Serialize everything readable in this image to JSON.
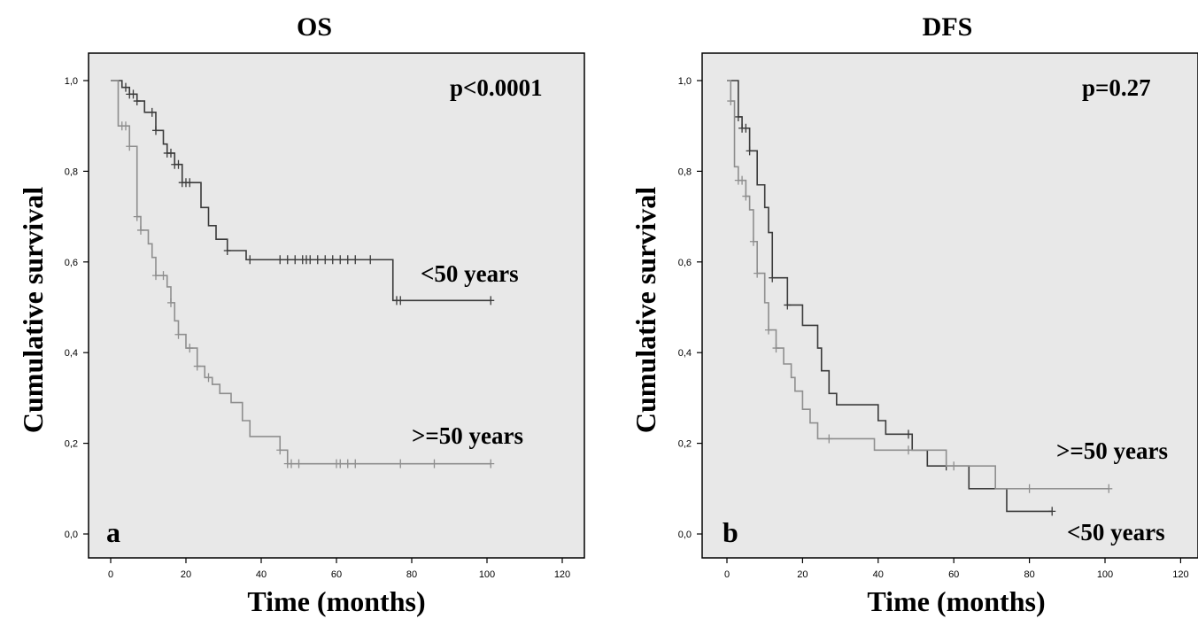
{
  "chart_data": [
    {
      "type": "line",
      "title": "OS",
      "xlabel": "Time (months)",
      "ylabel": "Cumulative survival",
      "xlim": [
        0,
        120
      ],
      "ylim": [
        0,
        1
      ],
      "x_ticks": [
        "0",
        "20",
        "40",
        "60",
        "80",
        "100",
        "120"
      ],
      "y_ticks": [
        "0,0",
        "0,2",
        "0,4",
        "0,6",
        "0,8",
        "1,0"
      ],
      "grid": false,
      "background": "#e8e8e8",
      "panel_label": "a",
      "p_value": "p<0.0001",
      "series": [
        {
          "name": "<50 years",
          "color": "#3a3a3a",
          "steps": [
            [
              0,
              1.0
            ],
            [
              3,
              0.985
            ],
            [
              5,
              0.97
            ],
            [
              7,
              0.955
            ],
            [
              9,
              0.93
            ],
            [
              12,
              0.89
            ],
            [
              14,
              0.86
            ],
            [
              15,
              0.84
            ],
            [
              17,
              0.815
            ],
            [
              19,
              0.775
            ],
            [
              24,
              0.72
            ],
            [
              26,
              0.68
            ],
            [
              28,
              0.65
            ],
            [
              31,
              0.625
            ],
            [
              36,
              0.605
            ],
            [
              75,
              0.515
            ],
            [
              101,
              0.515
            ]
          ],
          "censored": [
            4,
            5,
            6,
            7,
            11,
            12,
            15,
            16,
            17,
            18,
            19,
            20,
            21,
            31,
            37,
            45,
            47,
            49,
            51,
            52,
            53,
            55,
            57,
            59,
            61,
            63,
            65,
            69,
            76,
            77,
            101
          ]
        },
        {
          "name": ">=50 years",
          "color": "#8e8e8e",
          "steps": [
            [
              0,
              1.0
            ],
            [
              2,
              0.9
            ],
            [
              5,
              0.855
            ],
            [
              7,
              0.7
            ],
            [
              8,
              0.67
            ],
            [
              10,
              0.64
            ],
            [
              11,
              0.61
            ],
            [
              12,
              0.57
            ],
            [
              15,
              0.545
            ],
            [
              16,
              0.51
            ],
            [
              17,
              0.47
            ],
            [
              18,
              0.44
            ],
            [
              20,
              0.41
            ],
            [
              23,
              0.37
            ],
            [
              25,
              0.345
            ],
            [
              27,
              0.33
            ],
            [
              29,
              0.31
            ],
            [
              32,
              0.29
            ],
            [
              35,
              0.25
            ],
            [
              37,
              0.215
            ],
            [
              45,
              0.185
            ],
            [
              47,
              0.155
            ],
            [
              101,
              0.155
            ]
          ],
          "censored": [
            3,
            4,
            5,
            7,
            8,
            12,
            14,
            16,
            18,
            21,
            23,
            26,
            45,
            47,
            48,
            50,
            60,
            61,
            63,
            65,
            77,
            86,
            101
          ]
        }
      ],
      "series_labels": [
        "<50 years",
        ">=50 years"
      ]
    },
    {
      "type": "line",
      "title": "DFS",
      "xlabel": "Time (months)",
      "ylabel": "Cumulative survival",
      "xlim": [
        0,
        120
      ],
      "ylim": [
        0,
        1
      ],
      "x_ticks": [
        "0",
        "20",
        "40",
        "60",
        "80",
        "100",
        "120"
      ],
      "y_ticks": [
        "0,0",
        "0,2",
        "0,4",
        "0,6",
        "0,8",
        "1,0"
      ],
      "grid": false,
      "background": "#e8e8e8",
      "panel_label": "b",
      "p_value": "p=0.27",
      "series": [
        {
          "name": "<50 years",
          "color": "#3a3a3a",
          "steps": [
            [
              0,
              1.0
            ],
            [
              3,
              0.92
            ],
            [
              4,
              0.895
            ],
            [
              6,
              0.845
            ],
            [
              8,
              0.77
            ],
            [
              10,
              0.72
            ],
            [
              11,
              0.665
            ],
            [
              12,
              0.565
            ],
            [
              16,
              0.505
            ],
            [
              20,
              0.46
            ],
            [
              24,
              0.41
            ],
            [
              25,
              0.36
            ],
            [
              27,
              0.31
            ],
            [
              29,
              0.285
            ],
            [
              40,
              0.25
            ],
            [
              42,
              0.22
            ],
            [
              49,
              0.185
            ],
            [
              53,
              0.15
            ],
            [
              64,
              0.1
            ],
            [
              74,
              0.05
            ],
            [
              86,
              0.05
            ]
          ],
          "censored": [
            3,
            4,
            5,
            6,
            12,
            16,
            48,
            58,
            86
          ]
        },
        {
          "name": ">=50 years",
          "color": "#8e8e8e",
          "steps": [
            [
              0,
              1.0
            ],
            [
              1,
              0.955
            ],
            [
              2,
              0.81
            ],
            [
              3,
              0.78
            ],
            [
              5,
              0.745
            ],
            [
              6,
              0.715
            ],
            [
              7,
              0.645
            ],
            [
              8,
              0.575
            ],
            [
              10,
              0.51
            ],
            [
              11,
              0.45
            ],
            [
              13,
              0.41
            ],
            [
              15,
              0.375
            ],
            [
              17,
              0.345
            ],
            [
              18,
              0.315
            ],
            [
              20,
              0.275
            ],
            [
              22,
              0.245
            ],
            [
              24,
              0.21
            ],
            [
              39,
              0.185
            ],
            [
              58,
              0.15
            ],
            [
              71,
              0.1
            ],
            [
              101,
              0.1
            ]
          ],
          "censored": [
            1,
            3,
            4,
            5,
            7,
            8,
            11,
            13,
            27,
            48,
            60,
            80,
            101
          ]
        }
      ],
      "series_labels": [
        ">=50 years",
        "<50 years"
      ]
    }
  ]
}
